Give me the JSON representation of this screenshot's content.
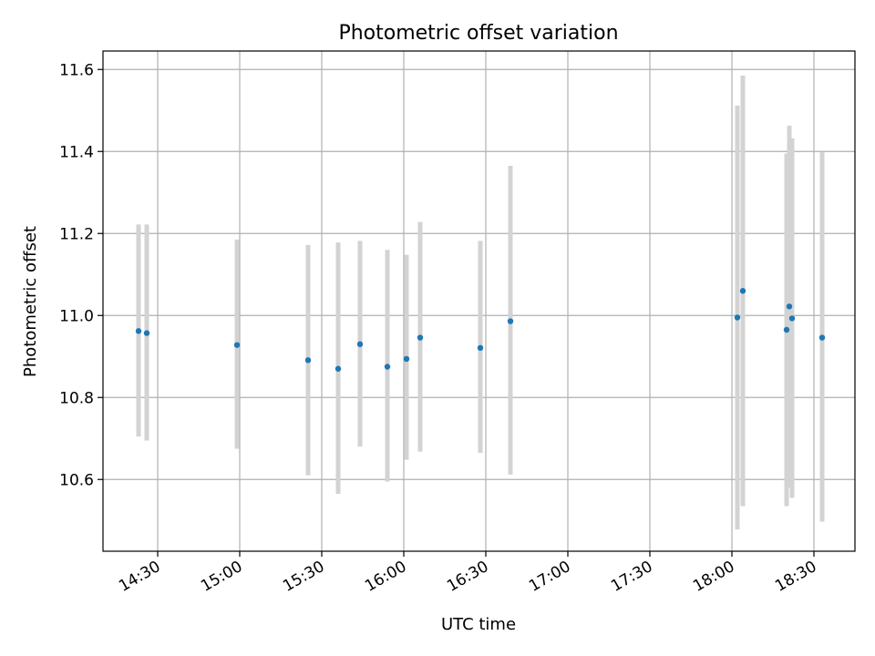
{
  "chart_data": {
    "type": "scatter",
    "title": "Photometric offset variation",
    "xlabel": "UTC time",
    "ylabel": "Photometric offset",
    "x_ticks": [
      "14:30",
      "15:00",
      "15:30",
      "16:00",
      "16:30",
      "17:00",
      "17:30",
      "18:00",
      "18:30"
    ],
    "y_ticks": [
      "10.6",
      "10.8",
      "11.0",
      "11.2",
      "11.4",
      "11.6"
    ],
    "xlim": [
      "14:10",
      "18:45"
    ],
    "ylim": [
      10.425,
      11.645
    ],
    "grid": true,
    "colors": {
      "point": "#1f77b4",
      "errorbar": "#d3d3d3",
      "grid": "#b0b0b0"
    },
    "points": [
      {
        "x": "14:23",
        "y": 10.962,
        "low": 10.705,
        "high": 11.222
      },
      {
        "x": "14:26",
        "y": 10.957,
        "low": 10.695,
        "high": 11.222
      },
      {
        "x": "14:59",
        "y": 10.928,
        "low": 10.675,
        "high": 11.185
      },
      {
        "x": "15:25",
        "y": 10.891,
        "low": 10.61,
        "high": 11.172
      },
      {
        "x": "15:36",
        "y": 10.87,
        "low": 10.565,
        "high": 11.178
      },
      {
        "x": "15:44",
        "y": 10.93,
        "low": 10.68,
        "high": 11.182
      },
      {
        "x": "15:54",
        "y": 10.875,
        "low": 10.595,
        "high": 11.16
      },
      {
        "x": "16:01",
        "y": 10.894,
        "low": 10.648,
        "high": 11.148
      },
      {
        "x": "16:06",
        "y": 10.946,
        "low": 10.668,
        "high": 11.228
      },
      {
        "x": "16:28",
        "y": 10.921,
        "low": 10.665,
        "high": 11.182
      },
      {
        "x": "16:39",
        "y": 10.986,
        "low": 10.612,
        "high": 11.365
      },
      {
        "x": "18:02",
        "y": 10.995,
        "low": 10.478,
        "high": 11.512
      },
      {
        "x": "18:04",
        "y": 11.06,
        "low": 10.535,
        "high": 11.585
      },
      {
        "x": "18:20",
        "y": 10.965,
        "low": 10.535,
        "high": 11.395
      },
      {
        "x": "18:21",
        "y": 11.022,
        "low": 10.58,
        "high": 11.463
      },
      {
        "x": "18:22",
        "y": 10.993,
        "low": 10.555,
        "high": 11.432
      },
      {
        "x": "18:33",
        "y": 10.946,
        "low": 10.497,
        "high": 11.398
      }
    ]
  }
}
